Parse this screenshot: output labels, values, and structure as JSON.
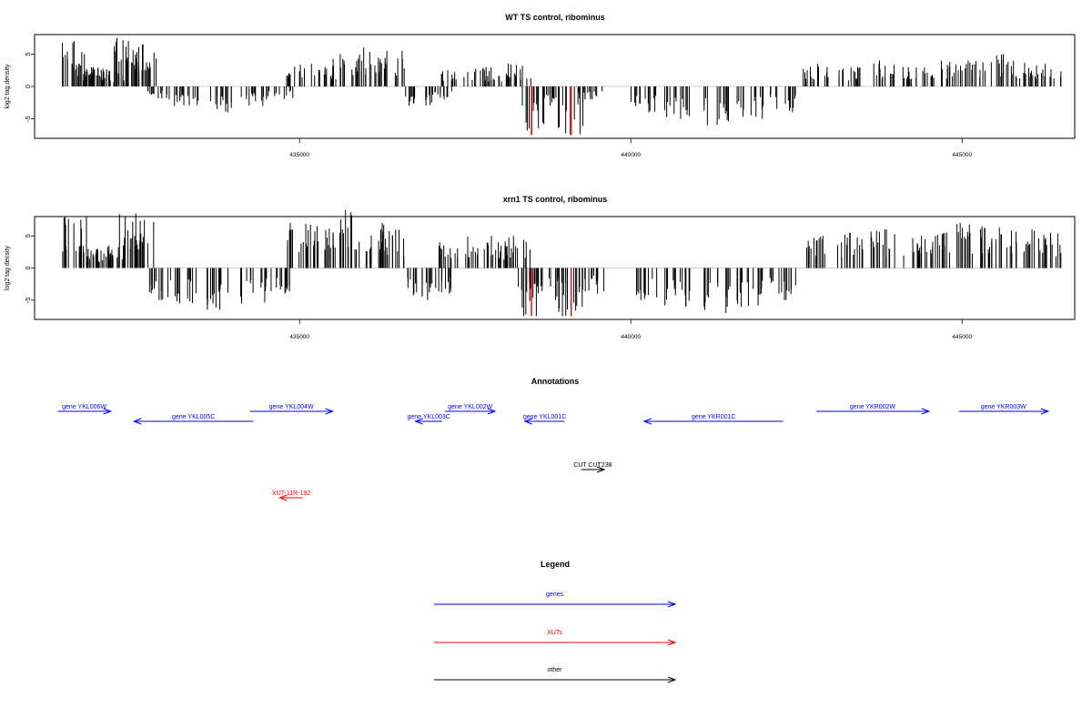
{
  "chart_data": [
    {
      "type": "bar",
      "title": "WT TS control, ribominus",
      "ylabel": "log2 tag density",
      "xlabel": "",
      "xlim": [
        431000,
        446700
      ],
      "ylim": [
        -8,
        8
      ],
      "yticks": [
        -5,
        0,
        5
      ],
      "xticks": [
        435000,
        440000,
        445000
      ],
      "grid": false,
      "series": [
        {
          "values": [
            {
              "x": 431600,
              "y": 7.0
            },
            {
              "x": 431800,
              "y": 3.5
            },
            {
              "x": 431900,
              "y": 2.8
            },
            {
              "x": 432050,
              "y": 3.0
            },
            {
              "x": 432200,
              "y": 2.0
            },
            {
              "x": 432400,
              "y": 7.5
            },
            {
              "x": 432550,
              "y": 4.0
            },
            {
              "x": 432650,
              "y": 6.5
            },
            {
              "x": 432900,
              "y": -2.0
            },
            {
              "x": 433300,
              "y": -3.0
            },
            {
              "x": 433800,
              "y": -4.0
            },
            {
              "x": 434300,
              "y": -3.0
            },
            {
              "x": 434700,
              "y": -2.0
            },
            {
              "x": 435000,
              "y": 3.5
            },
            {
              "x": 435400,
              "y": 3.0
            },
            {
              "x": 435700,
              "y": 5.0
            },
            {
              "x": 436100,
              "y": 6.0
            },
            {
              "x": 436400,
              "y": 5.5
            },
            {
              "x": 436800,
              "y": -3.0
            },
            {
              "x": 437100,
              "y": -2.0
            },
            {
              "x": 437300,
              "y": 2.5
            },
            {
              "x": 437700,
              "y": 3.0
            },
            {
              "x": 438000,
              "y": 2.0
            },
            {
              "x": 438300,
              "y": 3.5
            },
            {
              "x": 438500,
              "y": -7.5
            },
            {
              "x": 438700,
              "y": -3.0
            },
            {
              "x": 439100,
              "y": -7.5
            },
            {
              "x": 439400,
              "y": -2.0
            },
            {
              "x": 440200,
              "y": -4.0
            },
            {
              "x": 440700,
              "y": -5.0
            },
            {
              "x": 441300,
              "y": -6.0
            },
            {
              "x": 441800,
              "y": -5.0
            },
            {
              "x": 442300,
              "y": -4.0
            },
            {
              "x": 442800,
              "y": 3.5
            },
            {
              "x": 443300,
              "y": 3.0
            },
            {
              "x": 443800,
              "y": 4.0
            },
            {
              "x": 444300,
              "y": 3.0
            },
            {
              "x": 444700,
              "y": 4.0
            },
            {
              "x": 445100,
              "y": 4.0
            },
            {
              "x": 445500,
              "y": 5.0
            },
            {
              "x": 445900,
              "y": 4.0
            },
            {
              "x": 446300,
              "y": 3.5
            }
          ]
        },
        {
          "name": "XUTs",
          "color": "#ff0000",
          "values": [
            {
              "x": 438500,
              "y": -7.5
            },
            {
              "x": 439100,
              "y": -7.5
            }
          ]
        }
      ]
    },
    {
      "type": "bar",
      "title": "xrn1 TS control, ribominus",
      "ylabel": "log2 tag density",
      "xlabel": "",
      "xlim": [
        431000,
        446700
      ],
      "ylim": [
        -8,
        8
      ],
      "yticks": [
        -5,
        0,
        5
      ],
      "xticks": [
        435000,
        440000,
        445000
      ],
      "grid": false,
      "series": [
        {
          "values": [
            {
              "x": 431600,
              "y": 8.0
            },
            {
              "x": 431800,
              "y": 3.5
            },
            {
              "x": 432000,
              "y": 3.0
            },
            {
              "x": 432200,
              "y": 3.5
            },
            {
              "x": 432400,
              "y": 8.5
            },
            {
              "x": 432600,
              "y": 7.5
            },
            {
              "x": 432900,
              "y": -5.0
            },
            {
              "x": 433300,
              "y": -5.5
            },
            {
              "x": 433800,
              "y": -6.5
            },
            {
              "x": 434300,
              "y": -5.5
            },
            {
              "x": 434700,
              "y": -4.0
            },
            {
              "x": 435000,
              "y": 7.0
            },
            {
              "x": 435400,
              "y": 6.5
            },
            {
              "x": 435700,
              "y": 9.0
            },
            {
              "x": 436100,
              "y": 7.0
            },
            {
              "x": 436400,
              "y": 6.0
            },
            {
              "x": 436800,
              "y": -5.0
            },
            {
              "x": 437100,
              "y": -4.0
            },
            {
              "x": 437300,
              "y": 4.0
            },
            {
              "x": 437700,
              "y": 5.0
            },
            {
              "x": 438000,
              "y": 4.0
            },
            {
              "x": 438300,
              "y": 5.0
            },
            {
              "x": 438500,
              "y": -7.5
            },
            {
              "x": 438700,
              "y": -5.0
            },
            {
              "x": 439100,
              "y": -7.5
            },
            {
              "x": 439400,
              "y": -4.0
            },
            {
              "x": 440200,
              "y": -5.0
            },
            {
              "x": 440700,
              "y": -6.0
            },
            {
              "x": 441300,
              "y": -7.0
            },
            {
              "x": 441800,
              "y": -6.0
            },
            {
              "x": 442300,
              "y": -5.0
            },
            {
              "x": 442800,
              "y": 5.0
            },
            {
              "x": 443300,
              "y": 5.5
            },
            {
              "x": 443800,
              "y": 6.0
            },
            {
              "x": 444300,
              "y": 5.0
            },
            {
              "x": 444700,
              "y": 5.5
            },
            {
              "x": 445100,
              "y": 7.0
            },
            {
              "x": 445500,
              "y": 6.5
            },
            {
              "x": 445900,
              "y": 6.0
            },
            {
              "x": 446300,
              "y": 5.5
            }
          ]
        },
        {
          "name": "XUTs",
          "color": "#ff0000",
          "values": [
            {
              "x": 438500,
              "y": -7.5
            },
            {
              "x": 439100,
              "y": -7.5
            }
          ]
        }
      ]
    }
  ],
  "annotations": {
    "title": "Annotations",
    "features": [
      {
        "label": "gene YKL006W",
        "start": 431350,
        "end": 432150,
        "strand": "+",
        "color": "#0000ff",
        "row": 0
      },
      {
        "label": "gene YKL005C",
        "start": 432500,
        "end": 434300,
        "strand": "-",
        "color": "#0000ff",
        "row": 1
      },
      {
        "label": "gene YKL004W",
        "start": 434250,
        "end": 435500,
        "strand": "+",
        "color": "#0000ff",
        "row": 0
      },
      {
        "label": "gene YKL003C",
        "start": 436750,
        "end": 437150,
        "strand": "-",
        "color": "#0000ff",
        "row": 1
      },
      {
        "label": "gene YKL002W",
        "start": 437200,
        "end": 437950,
        "strand": "+",
        "color": "#0000ff",
        "row": 0
      },
      {
        "label": "gene YKL001C",
        "start": 438400,
        "end": 439000,
        "strand": "-",
        "color": "#0000ff",
        "row": 1
      },
      {
        "label": "gene YKR001C",
        "start": 440200,
        "end": 442300,
        "strand": "-",
        "color": "#0000ff",
        "row": 1
      },
      {
        "label": "gene YKR002W",
        "start": 442800,
        "end": 444500,
        "strand": "+",
        "color": "#0000ff",
        "row": 0
      },
      {
        "label": "gene YKR003W",
        "start": 444950,
        "end": 446300,
        "strand": "+",
        "color": "#0000ff",
        "row": 0
      },
      {
        "label": "CUT CUT238",
        "start": 439250,
        "end": 439600,
        "strand": "+",
        "color": "#000000",
        "row": 2
      },
      {
        "label": "XUT-11R-192",
        "start": 434700,
        "end": 435050,
        "strand": "-",
        "color": "#ff0000",
        "row": 3
      }
    ]
  },
  "legend": {
    "title": "Legend",
    "items": [
      {
        "label": "genes",
        "color": "#0000ff"
      },
      {
        "label": "XUTs",
        "color": "#ff0000"
      },
      {
        "label": "other",
        "color": "#000000"
      }
    ]
  }
}
